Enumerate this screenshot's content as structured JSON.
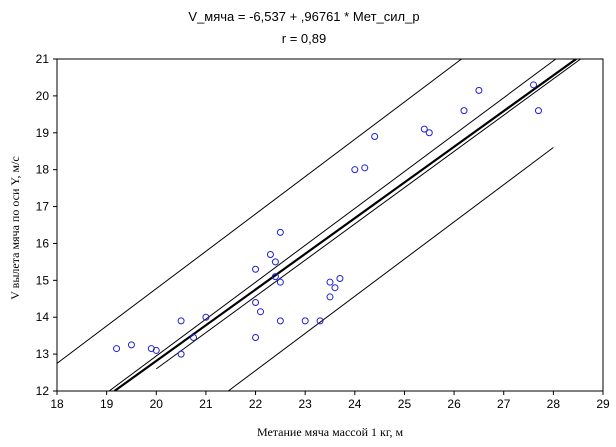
{
  "chart_data": {
    "type": "scatter",
    "title": "V_мяча = -6,537 + ,96761 * Мет_сил_р",
    "subtitle": "r = 0,89",
    "xlabel": "Метание мяча массой 1 кг, м",
    "ylabel": "V вылета мяча по оси Y, м/с",
    "xlim": [
      18,
      29
    ],
    "ylim": [
      12,
      21
    ],
    "xticks": [
      18,
      19,
      20,
      21,
      22,
      23,
      24,
      25,
      26,
      27,
      28,
      29
    ],
    "yticks": [
      12,
      13,
      14,
      15,
      16,
      17,
      18,
      19,
      20,
      21
    ],
    "grid": false,
    "regression": {
      "intercept": -6.537,
      "slope": 0.96761
    },
    "confidence_band": {
      "lower": [
        [
          20.0,
          12.6
        ],
        [
          28.55,
          21.0
        ]
      ],
      "upper": [
        [
          19.05,
          12.0
        ],
        [
          28.05,
          21.0
        ]
      ]
    },
    "prediction_band": {
      "lower": [
        [
          21.45,
          12.0
        ],
        [
          28.0,
          18.6
        ]
      ],
      "upper": [
        [
          18.0,
          12.75
        ],
        [
          26.15,
          21.0
        ]
      ]
    },
    "points": [
      {
        "x": 19.2,
        "y": 13.15
      },
      {
        "x": 19.5,
        "y": 13.25
      },
      {
        "x": 19.9,
        "y": 13.15
      },
      {
        "x": 20.0,
        "y": 13.1
      },
      {
        "x": 20.5,
        "y": 13.9
      },
      {
        "x": 20.5,
        "y": 13.0
      },
      {
        "x": 20.75,
        "y": 13.45
      },
      {
        "x": 21.0,
        "y": 14.0
      },
      {
        "x": 22.0,
        "y": 15.3
      },
      {
        "x": 22.0,
        "y": 14.4
      },
      {
        "x": 22.0,
        "y": 13.45
      },
      {
        "x": 22.1,
        "y": 14.15
      },
      {
        "x": 22.3,
        "y": 15.7
      },
      {
        "x": 22.4,
        "y": 15.5
      },
      {
        "x": 22.4,
        "y": 15.1
      },
      {
        "x": 22.5,
        "y": 16.3
      },
      {
        "x": 22.5,
        "y": 14.95
      },
      {
        "x": 22.5,
        "y": 13.9
      },
      {
        "x": 23.0,
        "y": 13.9
      },
      {
        "x": 23.3,
        "y": 13.9
      },
      {
        "x": 23.5,
        "y": 14.95
      },
      {
        "x": 23.5,
        "y": 14.55
      },
      {
        "x": 23.6,
        "y": 14.8
      },
      {
        "x": 23.7,
        "y": 15.05
      },
      {
        "x": 24.0,
        "y": 18.0
      },
      {
        "x": 24.2,
        "y": 18.05
      },
      {
        "x": 24.4,
        "y": 18.9
      },
      {
        "x": 25.4,
        "y": 19.1
      },
      {
        "x": 25.5,
        "y": 19.0
      },
      {
        "x": 26.2,
        "y": 19.6
      },
      {
        "x": 26.5,
        "y": 20.15
      },
      {
        "x": 27.6,
        "y": 20.3
      },
      {
        "x": 27.7,
        "y": 19.6
      }
    ]
  }
}
